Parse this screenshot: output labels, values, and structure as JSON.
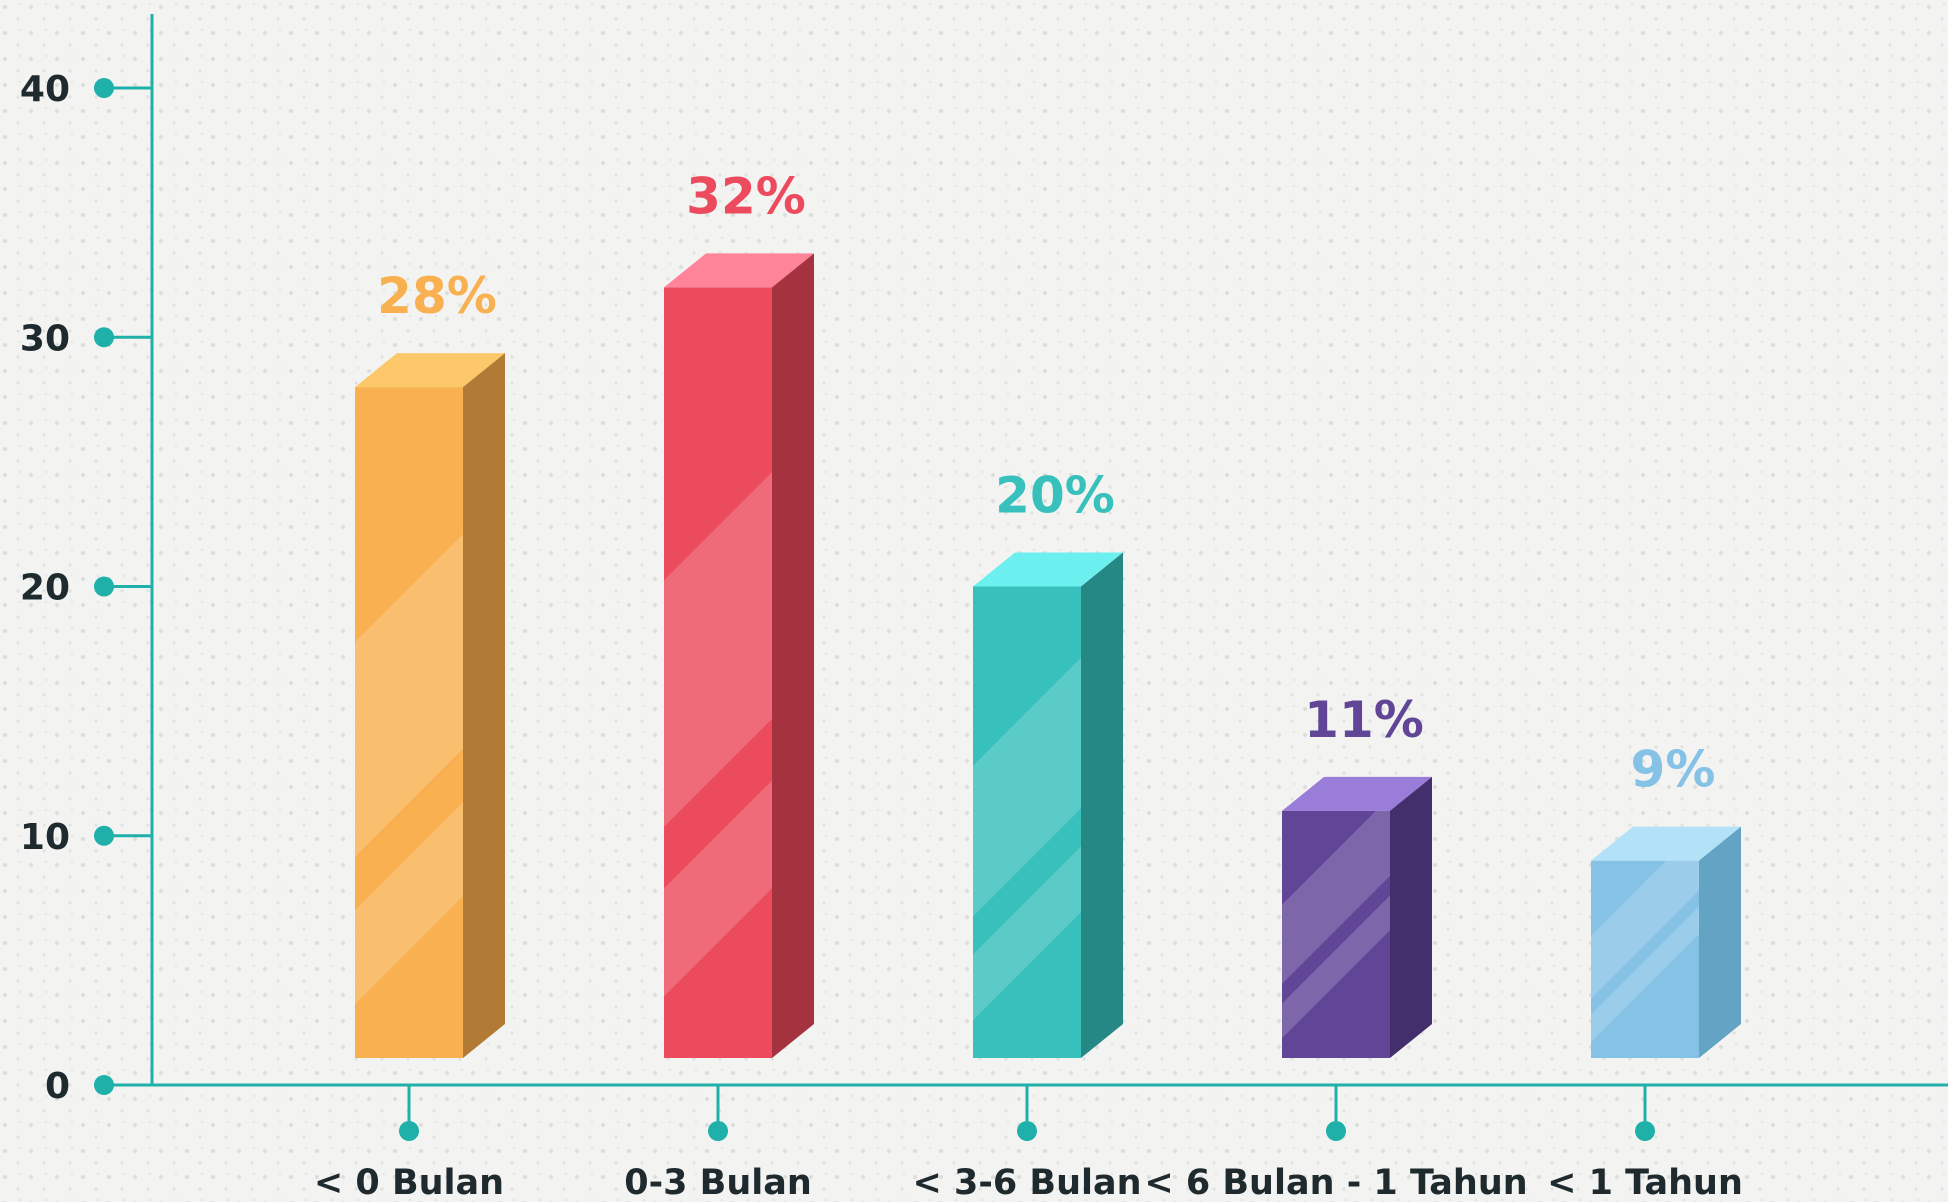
{
  "chart_data": {
    "type": "bar",
    "title": "",
    "xlabel": "",
    "ylabel": "",
    "categories": [
      "< 0 Bulan",
      "0-3 Bulan",
      "< 3-6 Bulan",
      "< 6 Bulan - 1 Tahun",
      "< 1 Tahun"
    ],
    "values": [
      28,
      32,
      20,
      11,
      9
    ],
    "data_labels": [
      "28%",
      "32%",
      "20%",
      "11%",
      "9%"
    ],
    "ylim": [
      0,
      40
    ],
    "yticks": [
      0,
      10,
      20,
      30,
      40
    ],
    "ytick_labels": [
      "0",
      "10",
      "20",
      "30",
      "40"
    ],
    "grid": false,
    "legend": "none",
    "colors": {
      "axis": "#1fb0aa",
      "bars": [
        {
          "front": "#f9b050",
          "top": "#fdc86a",
          "side": "#b27b35",
          "label": "#f9b050"
        },
        {
          "front": "#ec4b5d",
          "top": "#ff8399",
          "side": "#a4323f",
          "label": "#ec4b5d"
        },
        {
          "front": "#38c0bc",
          "top": "#6cefef",
          "side": "#268885",
          "label": "#38c0bc"
        },
        {
          "front": "#614698",
          "top": "#9a7cd9",
          "side": "#432f6c",
          "label": "#614698"
        },
        {
          "front": "#85c2e6",
          "top": "#b3e1f8",
          "side": "#63a4c4",
          "label": "#85c2e6"
        }
      ]
    }
  }
}
